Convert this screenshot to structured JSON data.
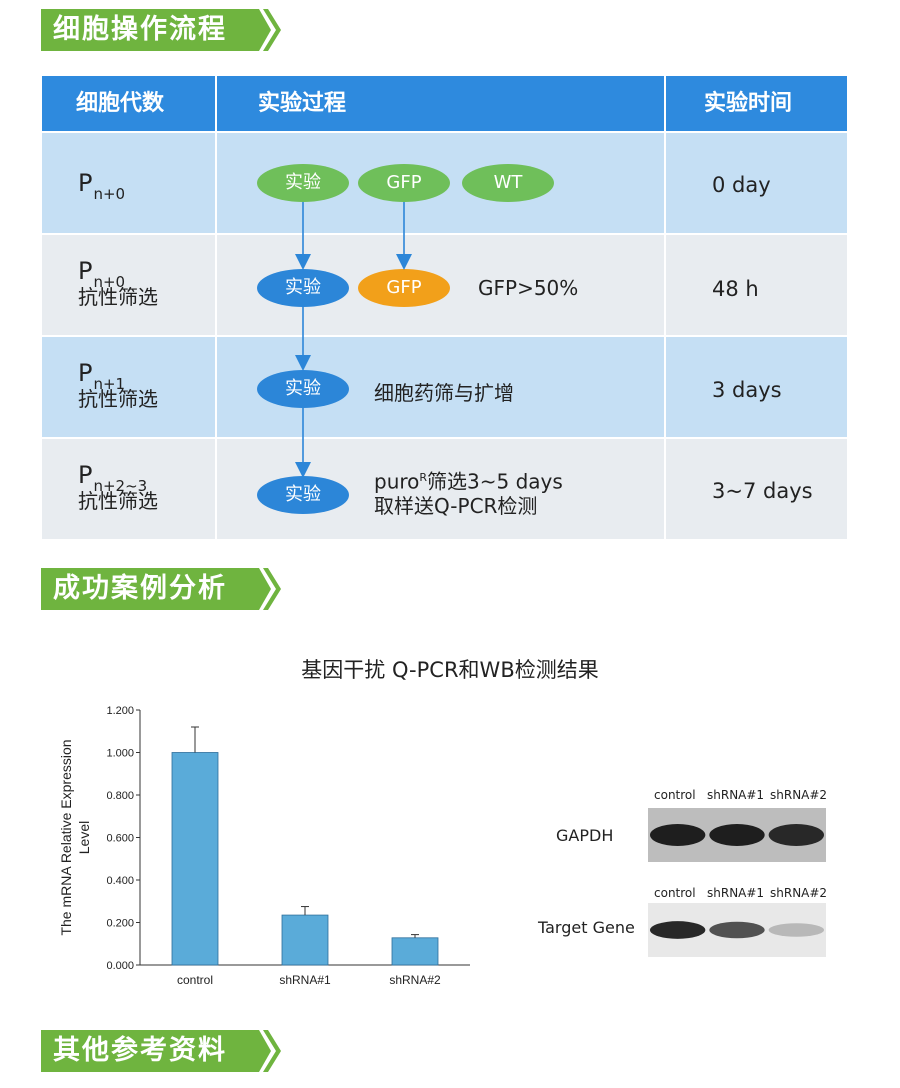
{
  "sections": {
    "protocol": "细胞操作流程",
    "cases": "成功案例分析",
    "references": "其他参考资料"
  },
  "colors": {
    "section_green": "#6fb43f",
    "header_blue": "#2e8ade",
    "row_blue": "#c5dff4",
    "row_gray": "#e8ecf0",
    "ellipse_green": "#6fbf5a",
    "ellipse_blue": "#2c86d8",
    "ellipse_orange": "#f2a01a",
    "bar_fill": "#5aabd9"
  },
  "table": {
    "headers": [
      "细胞代数",
      "实验过程",
      "实验时间"
    ],
    "rows": [
      {
        "p": "P",
        "sub": "n+0",
        "label": "",
        "ellipses": [
          "实验",
          "GFP",
          "WT"
        ],
        "note": "",
        "time": "0 day"
      },
      {
        "p": "P",
        "sub": "n+0",
        "label": "抗性筛选",
        "ellipses": [
          "实验",
          "GFP"
        ],
        "note": "GFP>50%",
        "time": "48 h"
      },
      {
        "p": "P",
        "sub": "n+1",
        "label": "抗性筛选",
        "ellipses": [
          "实验"
        ],
        "note": "细胞药筛与扩增",
        "time": "3 days"
      },
      {
        "p": "P",
        "sub": "n+2~3",
        "label": "抗性筛选",
        "ellipses": [
          "实验"
        ],
        "note_line1_a": "puro",
        "note_line1_sup": "R",
        "note_line1_b": "筛选3~5 days",
        "note_line2": "取样送Q-PCR检测",
        "time": "3~7 days"
      }
    ]
  },
  "chart_title": "基因干扰 Q-PCR和WB检测结果",
  "chart_data": {
    "type": "bar",
    "categories": [
      "control",
      "shRNA#1",
      "shRNA#2"
    ],
    "values": [
      1.0,
      0.235,
      0.128
    ],
    "errors": [
      0.12,
      0.04,
      0.015
    ],
    "ylabel_line1": "The mRNA Relative Expression",
    "ylabel_line2": "Level",
    "ylim": [
      0,
      1.2
    ],
    "yticks": [
      "0.000",
      "0.200",
      "0.400",
      "0.600",
      "0.800",
      "1.000",
      "1.200"
    ],
    "grid": false
  },
  "western_blot": {
    "columns": [
      "control",
      "shRNA#1",
      "shRNA#2"
    ],
    "bands": [
      {
        "label": "GAPDH",
        "intensity": [
          1.0,
          1.0,
          0.95
        ]
      },
      {
        "label": "Target Gene",
        "intensity": [
          0.95,
          0.75,
          0.25
        ]
      }
    ]
  }
}
